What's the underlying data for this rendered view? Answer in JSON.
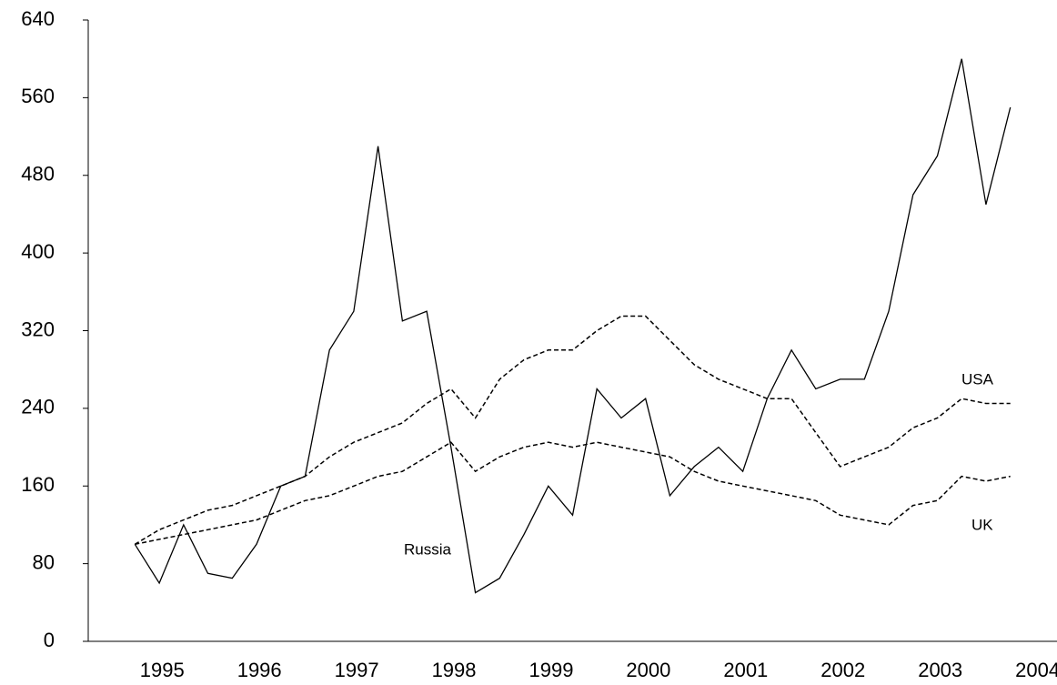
{
  "chart_data": {
    "type": "line",
    "x": [
      1994.72,
      1994.97,
      1995.22,
      1995.47,
      1995.72,
      1995.97,
      1996.22,
      1996.47,
      1996.72,
      1996.97,
      1997.22,
      1997.47,
      1997.72,
      1997.97,
      1998.22,
      1998.47,
      1998.72,
      1998.97,
      1999.22,
      1999.47,
      1999.72,
      1999.97,
      2000.22,
      2000.47,
      2000.72,
      2000.97,
      2001.22,
      2001.47,
      2001.72,
      2001.97,
      2002.22,
      2002.47,
      2002.72,
      2002.97,
      2003.22,
      2003.47,
      2003.72
    ],
    "series": [
      {
        "name": "Russia",
        "color": "#000000",
        "style": "solid",
        "values": [
          100,
          60,
          120,
          70,
          65,
          100,
          160,
          170,
          300,
          340,
          510,
          330,
          340,
          200,
          50,
          65,
          110,
          160,
          130,
          260,
          230,
          250,
          150,
          180,
          200,
          175,
          250,
          300,
          260,
          270,
          270,
          340,
          460,
          500,
          600,
          450,
          550
        ]
      },
      {
        "name": "USA",
        "color": "#000000",
        "style": "dashed",
        "values": [
          100,
          115,
          125,
          135,
          140,
          150,
          160,
          170,
          190,
          205,
          215,
          225,
          245,
          260,
          230,
          270,
          290,
          300,
          300,
          320,
          335,
          335,
          310,
          285,
          270,
          260,
          250,
          250,
          215,
          180,
          190,
          200,
          220,
          230,
          250,
          245,
          245
        ]
      },
      {
        "name": "UK",
        "color": "#000000",
        "style": "dashed",
        "values": [
          100,
          105,
          110,
          115,
          120,
          125,
          135,
          145,
          150,
          160,
          170,
          175,
          190,
          205,
          175,
          190,
          200,
          205,
          200,
          205,
          200,
          195,
          190,
          175,
          165,
          160,
          155,
          150,
          145,
          130,
          125,
          120,
          140,
          145,
          170,
          165,
          170
        ]
      }
    ],
    "xlim": [
      1994.24,
      2004.2
    ],
    "xticks": [
      1995,
      1996,
      1997,
      1998,
      1999,
      2000,
      2001,
      2002,
      2003,
      2004
    ],
    "ylim": [
      0,
      640
    ],
    "yticks": [
      0,
      80,
      160,
      240,
      320,
      400,
      480,
      560,
      640
    ],
    "grid": false
  }
}
